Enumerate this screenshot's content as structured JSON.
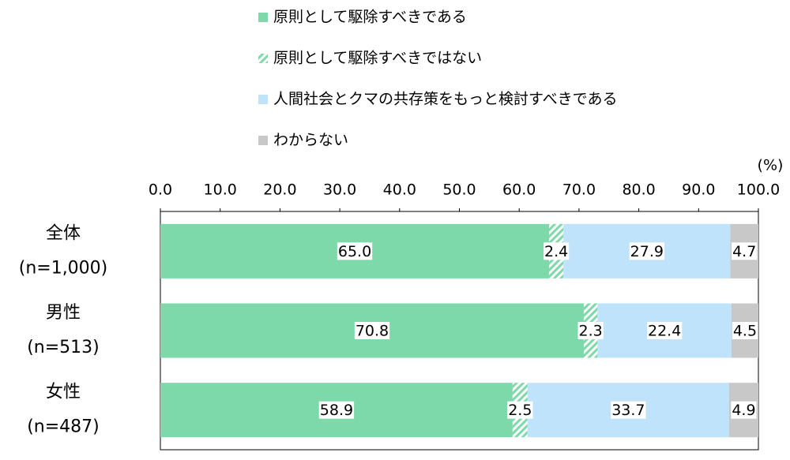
{
  "chart_data": {
    "type": "stacked-bar-horizontal",
    "unit_label": "(%)",
    "categories": [
      "全体",
      "男性",
      "女性"
    ],
    "category_notes": [
      "(n=1,000)",
      "(n=513)",
      "(n=487)"
    ],
    "series": [
      {
        "name": "原則として駆除すべきである",
        "color": "#7dd9a9",
        "values": [
          65.0,
          70.8,
          58.9
        ],
        "value_labels": [
          "65.0",
          "70.8",
          "58.9"
        ]
      },
      {
        "name": "原則として駆除すべきではない",
        "color": "#7dd9a9",
        "pattern": "hatch",
        "values": [
          2.4,
          2.3,
          2.5
        ],
        "value_labels": [
          "2.4",
          "2.3",
          "2.5"
        ]
      },
      {
        "name": "人間社会とクマの共存策をもっと検討すべきである",
        "color": "#bfe3fa",
        "values": [
          27.9,
          22.4,
          33.7
        ],
        "value_labels": [
          "27.9",
          "22.4",
          "33.7"
        ]
      },
      {
        "name": "わからない",
        "color": "#c8c8c8",
        "values": [
          4.7,
          4.5,
          4.9
        ],
        "value_labels": [
          "4.7",
          "4.5",
          "4.9"
        ]
      }
    ],
    "xlim": [
      0,
      100
    ],
    "xticks": [
      {
        "value": 0,
        "label": "0.0"
      },
      {
        "value": 10,
        "label": "10.0"
      },
      {
        "value": 20,
        "label": "20.0"
      },
      {
        "value": 30,
        "label": "30.0"
      },
      {
        "value": 40,
        "label": "40.0"
      },
      {
        "value": 50,
        "label": "50.0"
      },
      {
        "value": 60,
        "label": "60.0"
      },
      {
        "value": 70,
        "label": "70.0"
      },
      {
        "value": 80,
        "label": "80.0"
      },
      {
        "value": 90,
        "label": "90.0"
      },
      {
        "value": 100,
        "label": "100.0"
      }
    ],
    "legend": "top"
  }
}
